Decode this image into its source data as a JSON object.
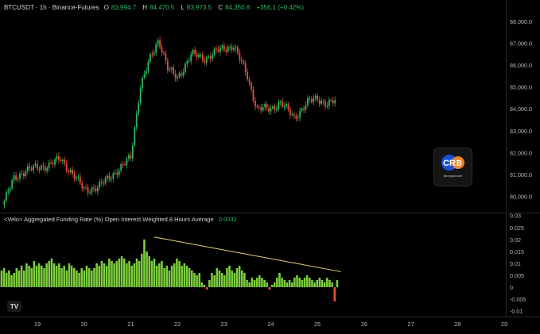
{
  "header": {
    "symbol": "BTCUSDT · 1h · Binance-Futures",
    "open_label": "O",
    "open": "83,994.7",
    "high_label": "H",
    "high": "84,470.5",
    "low_label": "L",
    "low": "83,973.5",
    "close_label": "C",
    "close": "84,350.8",
    "change": "+356.1 (+0.42%)"
  },
  "indicator": {
    "title": "<Velo> Aggregated Funding Rate (%) Open Interest Weighted 8 Hours Average",
    "value": "0.0032"
  },
  "watermark": {
    "handle": "@cryptorover",
    "logo_text": "CR"
  },
  "colors": {
    "up": "#2db85e",
    "down": "#e8503a",
    "funding_bar": "#7ccf3c",
    "trendline": "#e8d27a",
    "background": "#000000"
  },
  "chart_data": [
    {
      "type": "candlestick",
      "title": "BTCUSDT · 1h · Binance-Futures",
      "price_axis_ticks": [
        "88,000.0",
        "87,000.0",
        "86,000.0",
        "85,000.0",
        "84,000.0",
        "83,000.0",
        "82,000.0",
        "81,000.0",
        "80,000.0"
      ],
      "ylim": [
        79300,
        88500
      ],
      "x_ticks": [
        "19",
        "20",
        "21",
        "22",
        "23",
        "24",
        "25",
        "26",
        "27",
        "28",
        "29"
      ],
      "key_points": [
        {
          "x": 18.25,
          "price": 79600
        },
        {
          "x": 18.5,
          "price": 80800
        },
        {
          "x": 18.75,
          "price": 81200
        },
        {
          "x": 19.2,
          "price": 81400
        },
        {
          "x": 19.5,
          "price": 81700
        },
        {
          "x": 19.8,
          "price": 80900
        },
        {
          "x": 20.0,
          "price": 80300
        },
        {
          "x": 20.3,
          "price": 80400
        },
        {
          "x": 20.6,
          "price": 81000
        },
        {
          "x": 20.8,
          "price": 81300
        },
        {
          "x": 21.0,
          "price": 81800
        },
        {
          "x": 21.2,
          "price": 85000
        },
        {
          "x": 21.4,
          "price": 86200
        },
        {
          "x": 21.6,
          "price": 87200
        },
        {
          "x": 21.8,
          "price": 85800
        },
        {
          "x": 22.0,
          "price": 85400
        },
        {
          "x": 22.3,
          "price": 86500
        },
        {
          "x": 22.6,
          "price": 86300
        },
        {
          "x": 22.9,
          "price": 86700
        },
        {
          "x": 23.2,
          "price": 86900
        },
        {
          "x": 23.5,
          "price": 85500
        },
        {
          "x": 23.7,
          "price": 84000
        },
        {
          "x": 24.0,
          "price": 84000
        },
        {
          "x": 24.2,
          "price": 84300
        },
        {
          "x": 24.5,
          "price": 83600
        },
        {
          "x": 24.8,
          "price": 84300
        },
        {
          "x": 25.0,
          "price": 84500
        },
        {
          "x": 25.2,
          "price": 84200
        },
        {
          "x": 25.4,
          "price": 84350
        }
      ]
    },
    {
      "type": "bar",
      "title": "<Velo> Aggregated Funding Rate (%) Open Interest Weighted 8 Hours Average",
      "y_ticks": [
        "0.03",
        "0.025",
        "0.02",
        "0.015",
        "0.01",
        "0.005",
        "0",
        "-0.005",
        "-0.01"
      ],
      "ylim": [
        -0.0125,
        0.03
      ],
      "x_range": [
        18.1,
        25.45
      ],
      "values": [
        0.007,
        0.006,
        0.007,
        0.008,
        0.006,
        0.007,
        0.005,
        0.006,
        0.008,
        0.007,
        0.009,
        0.007,
        0.01,
        0.009,
        0.008,
        0.011,
        0.009,
        0.01,
        0.009,
        0.008,
        0.01,
        0.011,
        0.012,
        0.01,
        0.009,
        0.01,
        0.008,
        0.009,
        0.007,
        0.01,
        0.009,
        0.008,
        0.007,
        0.006,
        0.008,
        0.007,
        0.009,
        0.008,
        0.007,
        0.008,
        0.01,
        0.009,
        0.011,
        0.01,
        0.009,
        0.012,
        0.011,
        0.01,
        0.011,
        0.012,
        0.013,
        0.012,
        0.01,
        0.011,
        0.009,
        0.01,
        0.012,
        0.011,
        0.014,
        0.02,
        0.015,
        0.013,
        0.011,
        0.012,
        0.009,
        0.01,
        0.011,
        0.008,
        0.009,
        0.007,
        0.009,
        0.01,
        0.012,
        0.011,
        0.009,
        0.01,
        0.009,
        0.008,
        0.007,
        0.006,
        0.005,
        0.006,
        0.002,
        0.001,
        -0.001,
        0.003,
        0.006,
        0.005,
        0.008,
        0.007,
        0.006,
        0.005,
        0.008,
        0.009,
        0.007,
        0.006,
        0.008,
        0.009,
        0.007,
        0.006,
        0.003,
        0.002,
        0.004,
        0.003,
        0.004,
        0.005,
        0.004,
        0.003,
        0.002,
        -0.001,
        0.001,
        0.002,
        0.004,
        0.006,
        0.004,
        0.003,
        0.002,
        0.003,
        0.002,
        0.004,
        0.005,
        0.004,
        0.003,
        0.004,
        0.005,
        0.004,
        0.003,
        0.002,
        0.003,
        0.004,
        0.003,
        0.002,
        0.004,
        0.003,
        0.002,
        -0.006,
        0.003
      ],
      "trendline": {
        "from": {
          "x": 21.5,
          "y": 0.021
        },
        "to": {
          "x": 25.5,
          "y": 0.0065
        }
      }
    }
  ]
}
